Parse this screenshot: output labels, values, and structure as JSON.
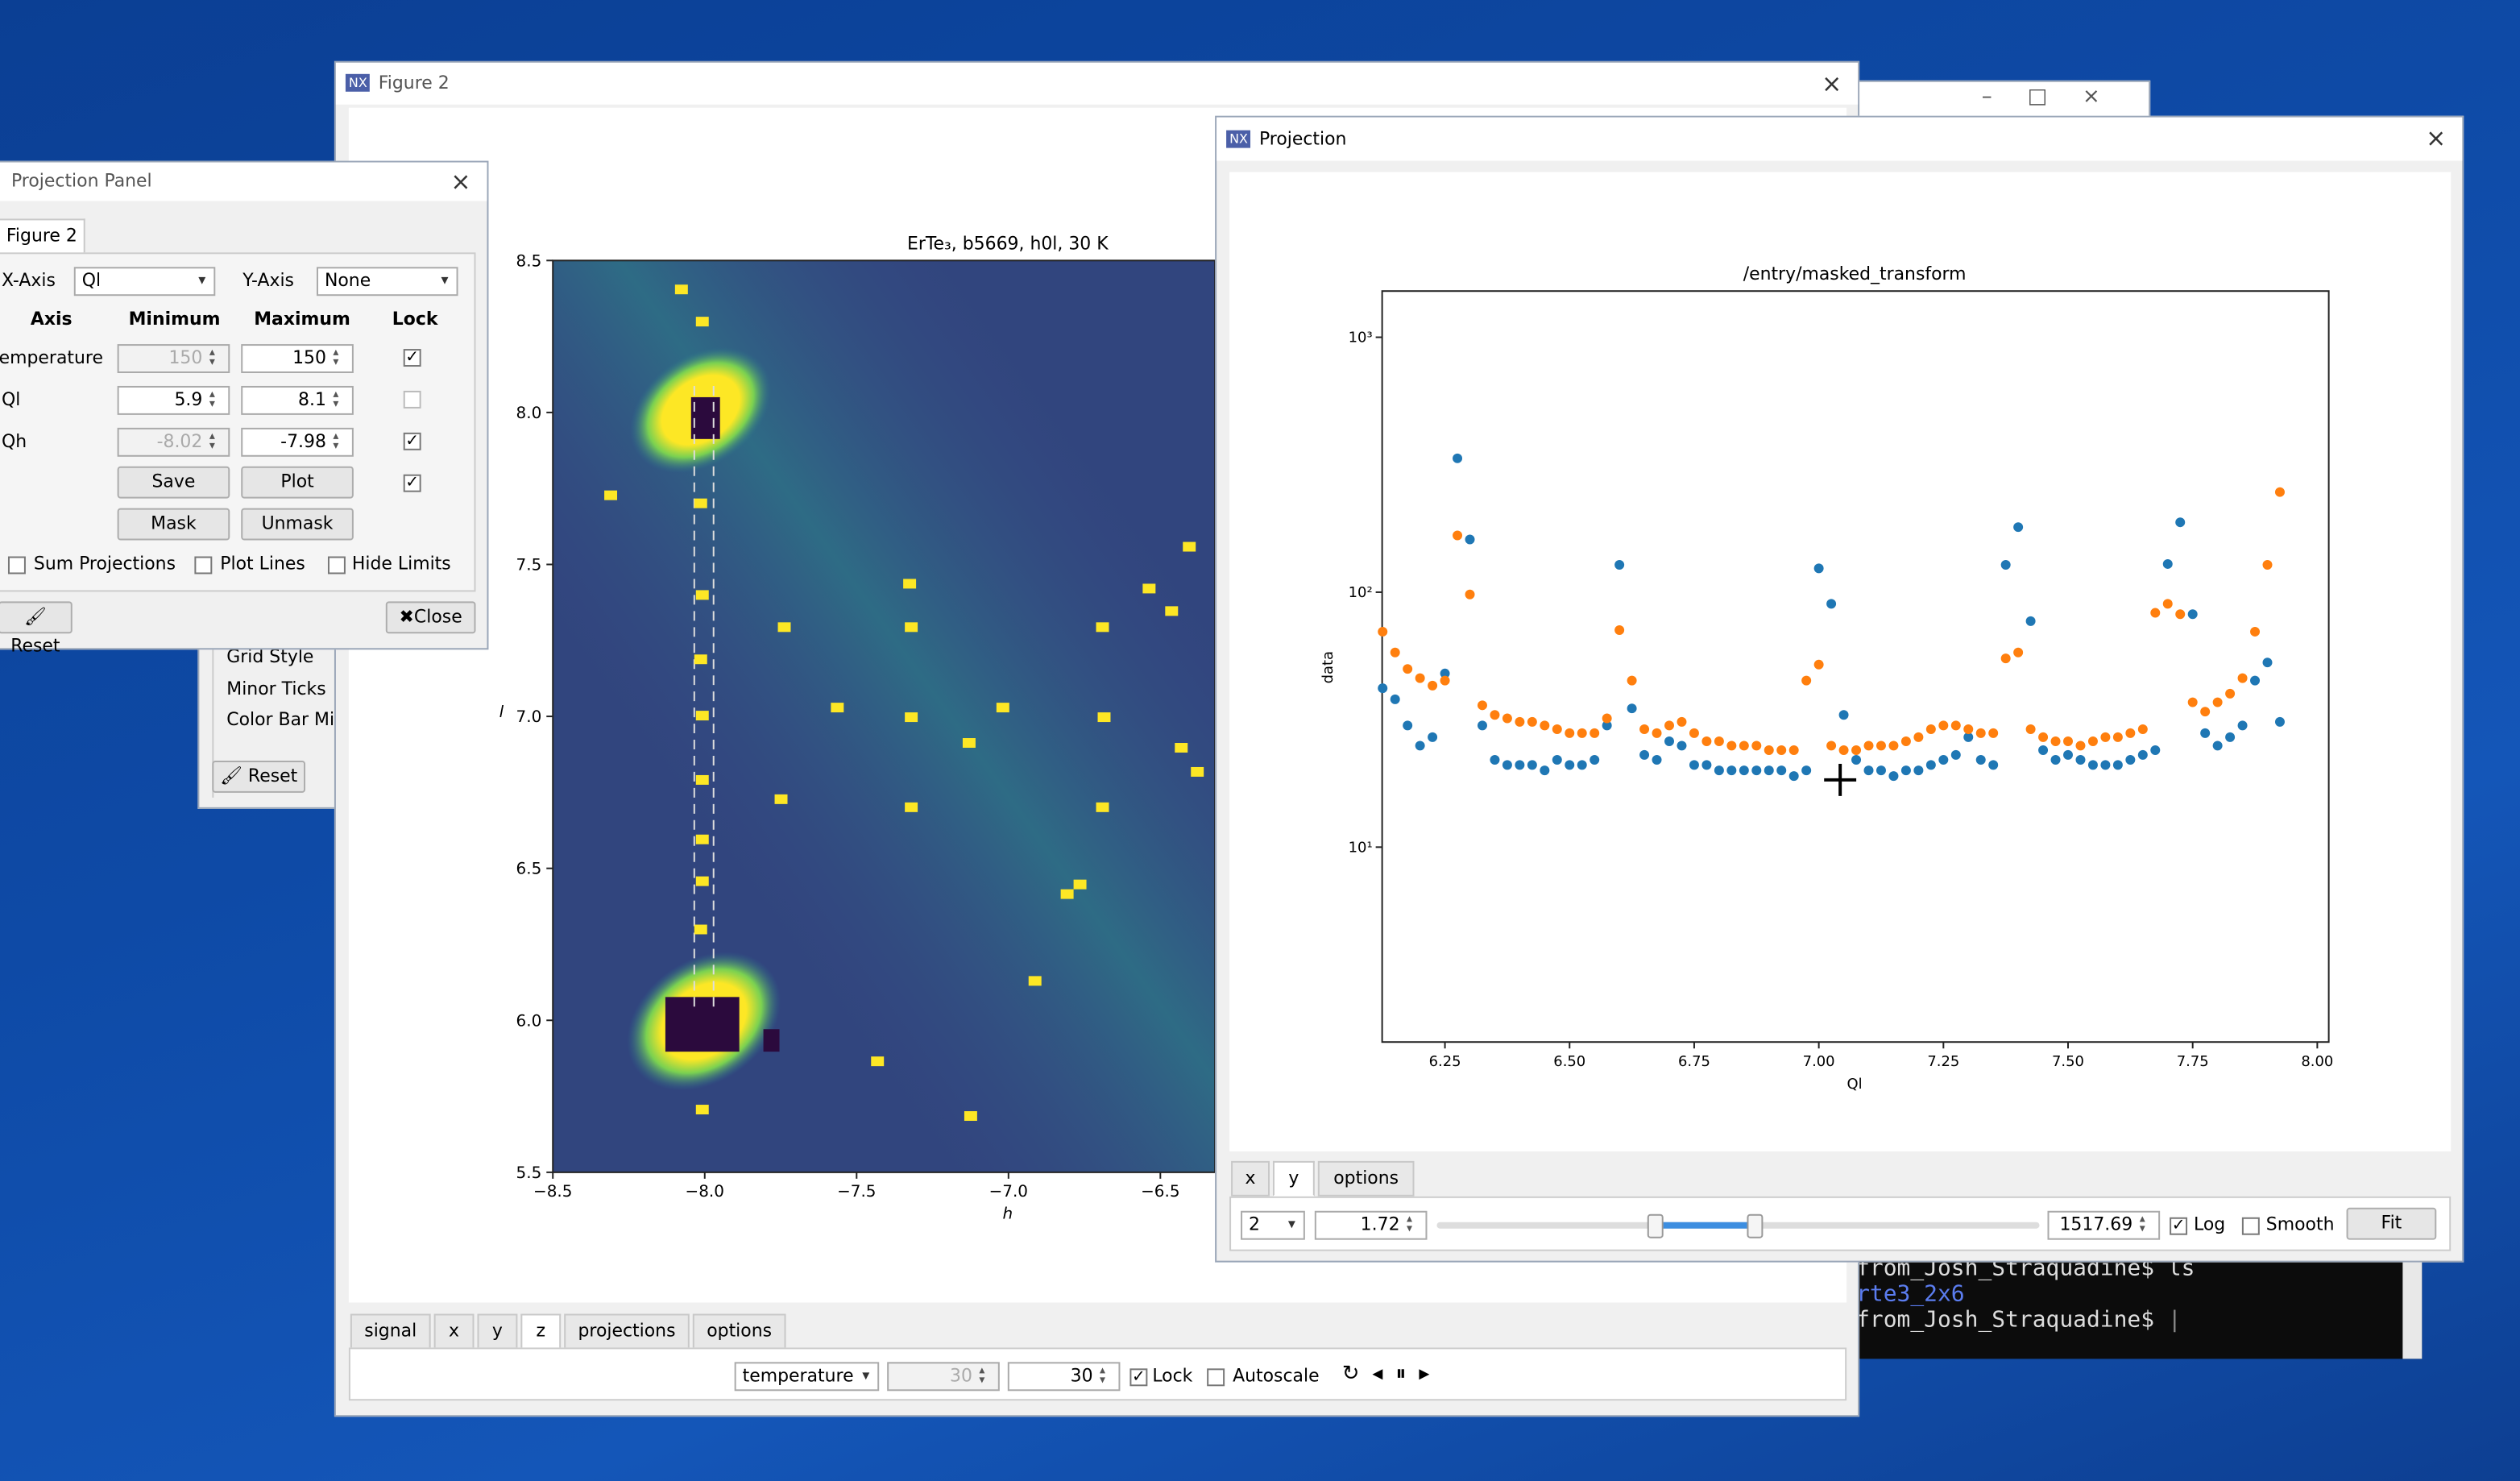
{
  "figure2_window": {
    "title": "Figure 2",
    "plot_title": "ErTe₃, b5669, h0l, 30 K",
    "x_label": "h",
    "y_label": "l",
    "x_ticks": [
      "−8.5",
      "−8.0",
      "−7.5",
      "−7.0",
      "−6.5"
    ],
    "y_ticks": [
      "5.5",
      "6.0",
      "6.5",
      "7.0",
      "7.5",
      "8.0",
      "8.5"
    ],
    "tabs": [
      "signal",
      "x",
      "y",
      "z",
      "projections",
      "options"
    ],
    "axis_select": "temperature",
    "min": "30",
    "max": "30",
    "lock": "Lock",
    "autoscale": "Autoscale"
  },
  "options_panel": {
    "items": [
      "Grid Style",
      "Minor Ticks",
      "Color Bar Mi"
    ],
    "reset": "Reset"
  },
  "projection_panel": {
    "title": "Projection Panel",
    "tab": "Figure 2",
    "x_axis_label": "X-Axis",
    "x_axis_value": "Ql",
    "y_axis_label": "Y-Axis",
    "y_axis_value": "None",
    "headers": [
      "Axis",
      "Minimum",
      "Maximum",
      "Lock"
    ],
    "rows": [
      [
        "temperature",
        "150",
        "150"
      ],
      [
        "Ql",
        "5.9",
        "8.1"
      ],
      [
        "Qh",
        "-8.02",
        "-7.98"
      ]
    ],
    "buttons": [
      "Save",
      "Plot",
      "Mask",
      "Unmask"
    ],
    "checkboxes": [
      "Sum Projections",
      "Plot Lines",
      "Hide Limits"
    ],
    "reset": "Reset",
    "close": "Close"
  },
  "projection_window": {
    "title": "Projection",
    "tabs": [
      "x",
      "y",
      "options"
    ],
    "step": "2",
    "min": "1.72",
    "max": "1517.69",
    "log": "Log",
    "smooth": "Smooth",
    "fit": "Fit"
  },
  "terminal": {
    "lines": [
      "from_Josh_Straquadine$ ls",
      "rte3_2x6",
      "from_Josh_Straquadine$"
    ]
  },
  "chart_data": {
    "type": "scatter",
    "title": "/entry/masked_transform",
    "x_label": "Ql",
    "y_label": "data",
    "x": [
      6.125,
      6.15,
      6.175,
      6.2,
      6.225,
      6.25,
      6.275,
      6.3,
      6.325,
      6.35,
      6.375,
      6.4,
      6.425,
      6.45,
      6.475,
      6.5,
      6.525,
      6.55,
      6.575,
      6.6,
      6.625,
      6.65,
      6.675,
      6.7,
      6.725,
      6.75,
      6.775,
      6.8,
      6.825,
      6.85,
      6.875,
      6.9,
      6.925,
      6.95,
      6.975,
      7.0,
      7.025,
      7.05,
      7.075,
      7.1,
      7.125,
      7.15,
      7.175,
      7.2,
      7.225,
      7.25,
      7.275,
      7.3,
      7.325,
      7.35,
      7.375,
      7.4,
      7.425,
      7.45,
      7.475,
      7.5,
      7.525,
      7.55,
      7.575,
      7.6,
      7.625,
      7.65,
      7.675,
      7.7,
      7.725,
      7.75,
      7.775,
      7.8,
      7.825,
      7.85,
      7.875,
      7.9,
      7.925
    ],
    "series": [
      {
        "color": "#1f77b4",
        "values": [
          42,
          38,
          30,
          25,
          27,
          48,
          335,
          161,
          30,
          22,
          21,
          21,
          21,
          20,
          22,
          21,
          21,
          22,
          30,
          128,
          35,
          23,
          22,
          26,
          25,
          21,
          21,
          20,
          20,
          20,
          20,
          20,
          20,
          19,
          20,
          124,
          90,
          33,
          22,
          20,
          20,
          19,
          20,
          20,
          21,
          22,
          23,
          27,
          22,
          21,
          128,
          180,
          77,
          24,
          22,
          23,
          22,
          21,
          21,
          21,
          22,
          23,
          24,
          129,
          188,
          82,
          28,
          25,
          27,
          30,
          45,
          53,
          31
        ]
      },
      {
        "color": "#ff7f0e",
        "values": [
          70,
          58,
          50,
          46,
          43,
          45,
          167,
          98,
          36,
          33,
          32,
          31,
          31,
          30,
          29,
          28,
          28,
          28,
          32,
          71,
          45,
          29,
          28,
          30,
          31,
          28,
          26,
          26,
          25,
          25,
          25,
          24,
          24,
          24,
          45,
          52,
          25,
          24,
          24,
          25,
          25,
          25,
          26,
          27,
          29,
          30,
          30,
          29,
          28,
          28,
          55,
          58,
          29,
          27,
          26,
          26,
          25,
          26,
          27,
          27,
          28,
          29,
          83,
          90,
          82,
          37,
          34,
          37,
          40,
          46,
          70,
          128,
          247
        ]
      }
    ],
    "xlim": [
      6.124,
      8.023
    ],
    "ylim": [
      1.72,
      1517.69
    ],
    "log_y": true,
    "grid": false,
    "xticks": [
      6.25,
      {
        "value": 6.5,
        "label": "6.50"
      },
      6.75,
      {
        "value": 7.0,
        "label": "7.00"
      },
      7.25,
      {
        "value": 7.5,
        "label": "7.50"
      },
      7.75,
      {
        "value": 8.0,
        "label": "8.00"
      }
    ],
    "yticks": [
      {
        "value": 10,
        "label": "10¹"
      },
      {
        "value": 100,
        "label": "10²"
      },
      {
        "value": 1000,
        "label": "10³"
      }
    ]
  }
}
